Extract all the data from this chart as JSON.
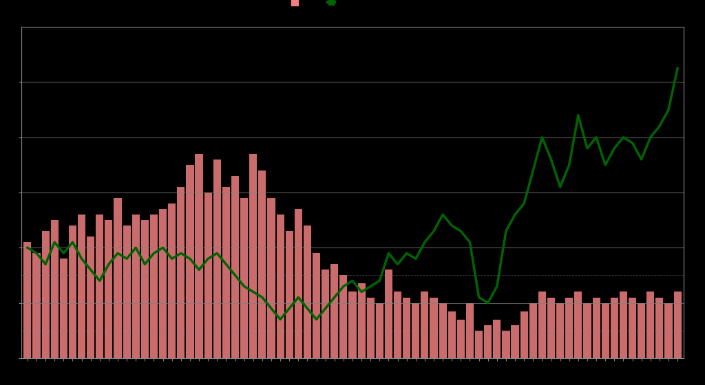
{
  "background_color": "#000000",
  "bar_color": "#f08080",
  "line_color": "#006400",
  "grid_color": "#808080",
  "title": "",
  "bar_values": [
    0.42,
    0.38,
    0.46,
    0.5,
    0.36,
    0.48,
    0.52,
    0.44,
    0.52,
    0.5,
    0.58,
    0.48,
    0.52,
    0.5,
    0.52,
    0.54,
    0.56,
    0.62,
    0.7,
    0.74,
    0.6,
    0.72,
    0.62,
    0.66,
    0.58,
    0.74,
    0.68,
    0.58,
    0.52,
    0.46,
    0.54,
    0.48,
    0.38,
    0.32,
    0.34,
    0.3,
    0.24,
    0.27,
    0.22,
    0.2,
    0.32,
    0.24,
    0.22,
    0.2,
    0.24,
    0.22,
    0.2,
    0.17,
    0.14,
    0.2,
    0.1,
    0.12,
    0.14,
    0.1,
    0.12,
    0.17,
    0.2,
    0.24,
    0.22,
    0.2,
    0.22,
    0.24,
    0.2,
    0.22,
    0.2,
    0.22,
    0.24,
    0.22,
    0.2,
    0.24,
    0.22,
    0.2,
    0.24
  ],
  "line_values": [
    0.4,
    0.38,
    0.34,
    0.42,
    0.38,
    0.42,
    0.36,
    0.32,
    0.28,
    0.34,
    0.38,
    0.36,
    0.4,
    0.34,
    0.38,
    0.4,
    0.36,
    0.38,
    0.36,
    0.32,
    0.36,
    0.38,
    0.34,
    0.3,
    0.26,
    0.24,
    0.22,
    0.18,
    0.14,
    0.18,
    0.22,
    0.18,
    0.14,
    0.18,
    0.22,
    0.26,
    0.28,
    0.24,
    0.26,
    0.28,
    0.38,
    0.34,
    0.38,
    0.36,
    0.42,
    0.46,
    0.52,
    0.48,
    0.46,
    0.42,
    0.22,
    0.2,
    0.26,
    0.46,
    0.52,
    0.56,
    0.68,
    0.8,
    0.72,
    0.62,
    0.7,
    0.88,
    0.76,
    0.8,
    0.7,
    0.76,
    0.8,
    0.78,
    0.72,
    0.8,
    0.84,
    0.9,
    1.05
  ],
  "ylim": [
    0,
    1.2
  ],
  "ytick_positions": [
    0,
    0.2,
    0.4,
    0.6,
    0.8,
    1.0
  ],
  "n_grid_lines": 6,
  "bar_alpha": 0.85,
  "legend_label_bar": "  ",
  "legend_label_line": "  ",
  "tick_color": "#888888",
  "spine_color": "#888888"
}
